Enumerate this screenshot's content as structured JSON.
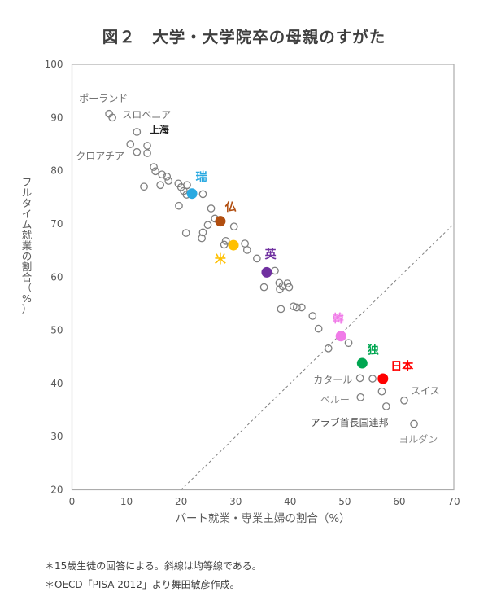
{
  "page": {
    "title": "図２　大学・大学院卒の母親のすがた"
  },
  "chart_data": {
    "type": "scatter",
    "title": "図２　大学・大学院卒の母親のすがた",
    "xlabel": "パート就業・専業主婦の割合（%）",
    "ylabel": "フルタイム就業の割合（%）",
    "xlim": [
      0,
      70
    ],
    "ylim": [
      20,
      100
    ],
    "xticks": [
      0,
      10,
      20,
      30,
      40,
      50,
      60,
      70
    ],
    "yticks": [
      100,
      90,
      80,
      70,
      60,
      50,
      40,
      30,
      20
    ],
    "grid": false,
    "legend": "none",
    "equality_line": {
      "from": [
        20,
        20
      ],
      "to": [
        70,
        70
      ],
      "dashed": true,
      "color": "#808080"
    },
    "series": [
      {
        "id": "open-circles",
        "marker": "open-circle",
        "color": "#7f7f7f",
        "points": [
          [
            6.8,
            90.7
          ],
          [
            7.4,
            90.0
          ],
          [
            11.9,
            87.3
          ],
          [
            10.7,
            85.0
          ],
          [
            11.9,
            83.5
          ],
          [
            13.8,
            84.7
          ],
          [
            13.8,
            83.3
          ],
          [
            15.0,
            80.7
          ],
          [
            15.3,
            79.9
          ],
          [
            16.5,
            79.3
          ],
          [
            17.4,
            78.9
          ],
          [
            17.7,
            78.1
          ],
          [
            16.2,
            77.3
          ],
          [
            13.2,
            77.0
          ],
          [
            19.5,
            77.6
          ],
          [
            21.1,
            77.3
          ],
          [
            20.0,
            76.9
          ],
          [
            20.5,
            76.2
          ],
          [
            21.0,
            75.5
          ],
          [
            24.0,
            75.6
          ],
          [
            19.6,
            73.4
          ],
          [
            25.5,
            72.9
          ],
          [
            26.2,
            71.0
          ],
          [
            24.9,
            69.8
          ],
          [
            29.7,
            69.5
          ],
          [
            24.0,
            68.4
          ],
          [
            20.9,
            68.3
          ],
          [
            23.8,
            67.3
          ],
          [
            28.2,
            66.8
          ],
          [
            27.9,
            66.1
          ],
          [
            31.7,
            66.3
          ],
          [
            32.1,
            65.1
          ],
          [
            33.9,
            63.5
          ],
          [
            37.2,
            61.2
          ],
          [
            35.2,
            58.1
          ],
          [
            38.0,
            58.9
          ],
          [
            38.6,
            58.3
          ],
          [
            38.1,
            57.7
          ],
          [
            39.5,
            58.8
          ],
          [
            39.8,
            58.1
          ],
          [
            38.3,
            54.0
          ],
          [
            40.6,
            54.5
          ],
          [
            41.2,
            54.3
          ],
          [
            42.1,
            54.3
          ],
          [
            44.1,
            52.7
          ],
          [
            45.2,
            50.3
          ],
          [
            47.0,
            46.6
          ],
          [
            50.7,
            47.6
          ],
          [
            52.8,
            41.0
          ],
          [
            55.1,
            40.9
          ],
          [
            56.8,
            38.5
          ],
          [
            52.9,
            37.4
          ],
          [
            57.6,
            35.7
          ],
          [
            60.9,
            36.8
          ],
          [
            62.7,
            32.4
          ]
        ]
      },
      {
        "id": "highlighted-countries",
        "marker": "filled-circle",
        "points": [
          {
            "label": "瑞",
            "x": 22.0,
            "y": 75.7,
            "color": "#29A9E1",
            "label_x": 23.7,
            "label_y": 78.9
          },
          {
            "label": "仏",
            "x": 27.2,
            "y": 70.5,
            "color": "#B14E10",
            "label_x": 29.1,
            "label_y": 73.2
          },
          {
            "label": "米",
            "x": 29.6,
            "y": 66.0,
            "color": "#FFC000",
            "label_x": 27.2,
            "label_y": 63.4
          },
          {
            "label": "英",
            "x": 35.7,
            "y": 60.9,
            "color": "#7030A0",
            "label_x": 36.4,
            "label_y": 64.3
          },
          {
            "label": "韓",
            "x": 49.3,
            "y": 48.9,
            "color": "#F07BE8",
            "label_x": 48.8,
            "label_y": 52.2
          },
          {
            "label": "独",
            "x": 53.2,
            "y": 43.8,
            "color": "#00A651",
            "label_x": 55.2,
            "label_y": 46.3
          },
          {
            "label": "日本",
            "x": 57.0,
            "y": 40.9,
            "color": "#FF0000",
            "label_x": 60.5,
            "label_y": 43.3
          }
        ]
      }
    ],
    "annotations": [
      {
        "text": "ポーランド",
        "x": 1.3,
        "y": 93.6,
        "anchor": "start",
        "color": "#737373",
        "bold": false
      },
      {
        "text": "スロベニア",
        "x": 9.2,
        "y": 90.5,
        "anchor": "start",
        "color": "#737373",
        "bold": false
      },
      {
        "text": "上海",
        "x": 14.2,
        "y": 87.7,
        "anchor": "start",
        "color": "#1f1f1f",
        "bold": true
      },
      {
        "text": "クロアチア",
        "x": 0.7,
        "y": 82.8,
        "anchor": "start",
        "color": "#737373",
        "bold": false
      },
      {
        "text": "カタール",
        "x": 51.4,
        "y": 40.7,
        "anchor": "end",
        "color": "#737373",
        "bold": false
      },
      {
        "text": "ペルー",
        "x": 50.9,
        "y": 36.9,
        "anchor": "end",
        "color": "#8c8c8c",
        "bold": false
      },
      {
        "text": "アラブ首長国連邦",
        "x": 43.7,
        "y": 32.6,
        "anchor": "start",
        "color": "#4d4d4d",
        "bold": false
      },
      {
        "text": "スイス",
        "x": 62.1,
        "y": 38.6,
        "anchor": "start",
        "color": "#737373",
        "bold": false
      },
      {
        "text": "ヨルダン",
        "x": 59.9,
        "y": 29.5,
        "anchor": "start",
        "color": "#8c8c8c",
        "bold": false
      }
    ]
  },
  "footnotes": [
    "＊15歳生徒の回答による。斜線は均等線である。",
    "＊OECD「PISA 2012」より舞田敏彦作成。"
  ],
  "colors": {
    "plot_border": "#ACACAC",
    "tick_label": "#595959",
    "axis_title": "#595959",
    "open_circle": "#7f7f7f",
    "equality_line": "#808080",
    "title": "#3f3f3f"
  }
}
